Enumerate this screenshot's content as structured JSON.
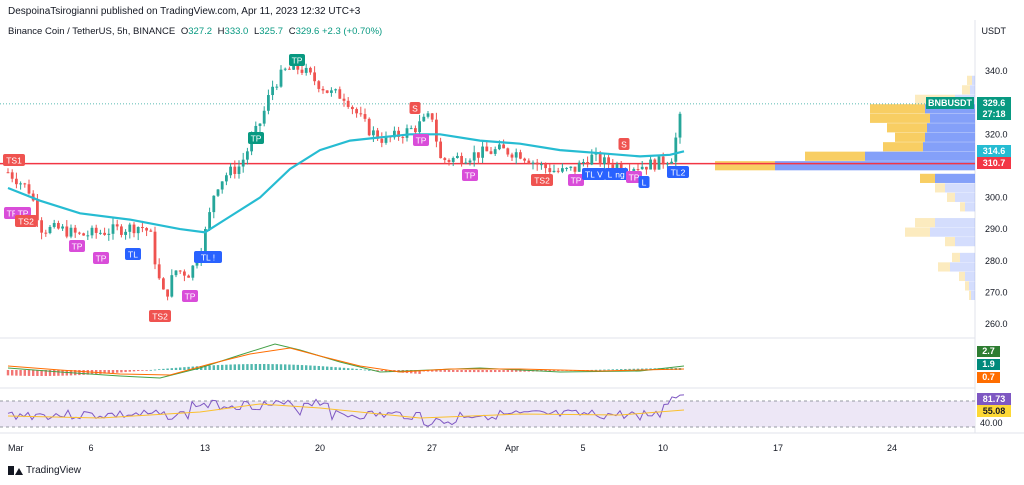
{
  "header": {
    "publisher_line": "DespoinaTsirogianni published on TradingView.com, Apr 11, 2023 12:32 UTC+3"
  },
  "symbol_line": {
    "name": "Binance Coin / TetherUS, 5h, BINANCE",
    "o_label": "O",
    "o": "327.2",
    "h_label": "H",
    "h": "333.0",
    "l_label": "L",
    "l": "325.7",
    "c_label": "C",
    "c": "329.6",
    "change": "+2.3 (+0.70%)"
  },
  "axis_currency": "USDT",
  "price_axis": {
    "ticks": [
      "340.0",
      "330.0",
      "320.0",
      "310.0",
      "300.0",
      "290.0",
      "280.0",
      "270.0",
      "260.0"
    ]
  },
  "time_axis": {
    "labels": [
      "Mar",
      "6",
      "13",
      "20",
      "27",
      "Apr",
      "5",
      "10",
      "17",
      "24"
    ]
  },
  "price_badges": {
    "symbol": "BNBUSDT",
    "last": "329.6",
    "countdown": "27:18",
    "ma": "314.6",
    "hline": "310.7"
  },
  "indicator_badges": {
    "macd_a": "2.7",
    "macd_b": "1.9",
    "macd_c": "0.7",
    "rsi": "81.73",
    "rsi_ma": "55.08",
    "rsi_level": "40.00"
  },
  "footer": {
    "brand": "TradingView"
  },
  "colors": {
    "up": "#26a69a",
    "down": "#ef5350",
    "ma": "#26bcd2",
    "hline": "#f23645",
    "buy": "#089981",
    "tp": "#d94dd9",
    "tl": "#2962ff",
    "vp_yellow": "#f7c648",
    "vp_blue": "#6f8ff8"
  },
  "chart_data": {
    "type": "candlestick",
    "ylim": [
      258,
      346
    ],
    "signals": [
      {
        "text": "TP"
      },
      {
        "text": "TP"
      },
      {
        "text": "TS2"
      },
      {
        "text": "TP"
      },
      {
        "text": "TP"
      },
      {
        "text": "TL"
      },
      {
        "text": "TL !"
      },
      {
        "text": "TP"
      },
      {
        "text": "TS2"
      },
      {
        "text": "TP"
      },
      {
        "text": "TP"
      },
      {
        "text": "S"
      },
      {
        "text": "TP"
      },
      {
        "text": "TP"
      },
      {
        "text": "TS2"
      },
      {
        "text": "TP"
      },
      {
        "text": "TL"
      },
      {
        "text": "V"
      },
      {
        "text": "L"
      },
      {
        "text": "ng"
      },
      {
        "text": "TP"
      },
      {
        "text": "L"
      },
      {
        "text": "S"
      },
      {
        "text": "TL2"
      },
      {
        "text": "TS1"
      }
    ],
    "hline_price": 310.7,
    "ma_price_last": 314.6
  }
}
